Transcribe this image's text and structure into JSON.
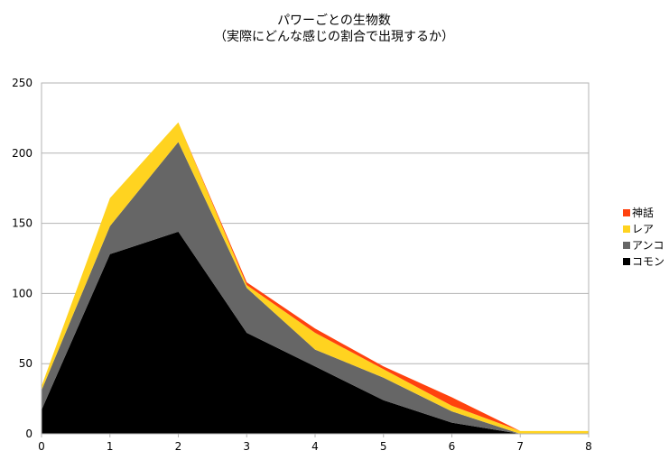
{
  "chart_data": {
    "type": "area",
    "stacked": true,
    "title": "パワーごとの生物数",
    "subtitle": "（実際にどんな感じの割合で出現するか）",
    "xlabel": "",
    "ylabel": "",
    "x": [
      0,
      1,
      2,
      3,
      4,
      5,
      6,
      7,
      8
    ],
    "xlim": [
      0,
      8
    ],
    "ylim": [
      0,
      250
    ],
    "yticks": [
      0,
      50,
      100,
      150,
      200,
      250
    ],
    "grid": true,
    "legend_position": "right",
    "series": [
      {
        "name": "コモン",
        "color": "#000000",
        "values": [
          17,
          128,
          144,
          72,
          48,
          24,
          8,
          0,
          0
        ]
      },
      {
        "name": "アンコ",
        "color": "#666666",
        "values": [
          14,
          20,
          64,
          32,
          12,
          16,
          8,
          0,
          0
        ]
      },
      {
        "name": "レア",
        "color": "#ffd320",
        "values": [
          3,
          20,
          14,
          2,
          12,
          6,
          4,
          2,
          2
        ]
      },
      {
        "name": "神話",
        "color": "#ff420e",
        "values": [
          0,
          0,
          0,
          2,
          3,
          2,
          6,
          0,
          0
        ]
      }
    ]
  }
}
